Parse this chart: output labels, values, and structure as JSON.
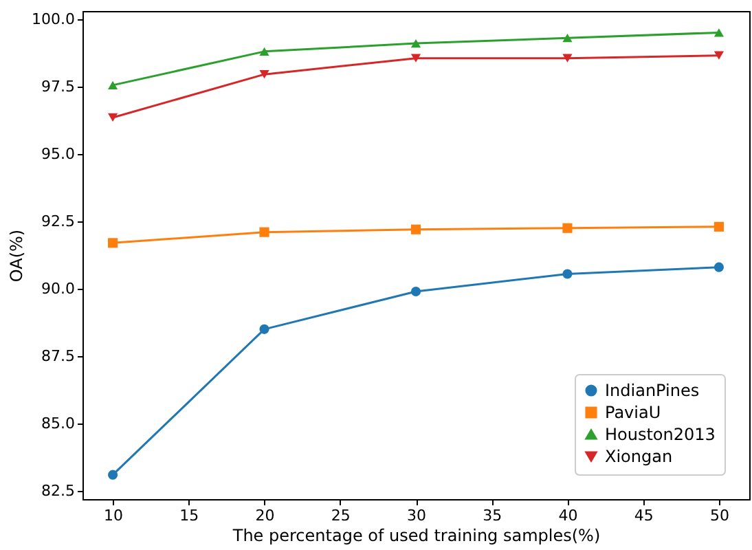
{
  "chart_data": {
    "type": "line",
    "xlabel": "The percentage of used training samples(%)",
    "ylabel": "OA(%)",
    "x": [
      10,
      20,
      30,
      40,
      50
    ],
    "series": [
      {
        "name": "IndianPines",
        "color": "#1f77b4",
        "marker": "circle",
        "values": [
          83.1,
          88.5,
          89.9,
          90.55,
          90.8
        ]
      },
      {
        "name": "PaviaU",
        "color": "#ff7f0e",
        "marker": "square",
        "values": [
          91.7,
          92.1,
          92.2,
          92.25,
          92.3
        ]
      },
      {
        "name": "Houston2013",
        "color": "#2ca02c",
        "marker": "triangle",
        "values": [
          97.55,
          98.8,
          99.1,
          99.3,
          99.5
        ]
      },
      {
        "name": "Xiongan",
        "color": "#d62728",
        "marker": "triangle_down",
        "values": [
          96.35,
          97.95,
          98.55,
          98.55,
          98.65
        ]
      }
    ],
    "xlim": [
      8,
      52
    ],
    "xticks": [
      10,
      15,
      20,
      25,
      30,
      35,
      40,
      45,
      50
    ],
    "ylim": [
      82.2,
      100.3
    ],
    "yticks": [
      {
        "value": 82.5,
        "label": "82.5"
      },
      {
        "value": 85,
        "label": "85.0"
      },
      {
        "value": 87.5,
        "label": "87.5"
      },
      {
        "value": 90,
        "label": "90.0"
      },
      {
        "value": 92.5,
        "label": "92.5"
      },
      {
        "value": 95,
        "label": "95.0"
      },
      {
        "value": 97.5,
        "label": "97.5"
      },
      {
        "value": 100,
        "label": "100.0"
      }
    ],
    "grid": false,
    "legend": "bottom right",
    "line_style": "solid"
  }
}
